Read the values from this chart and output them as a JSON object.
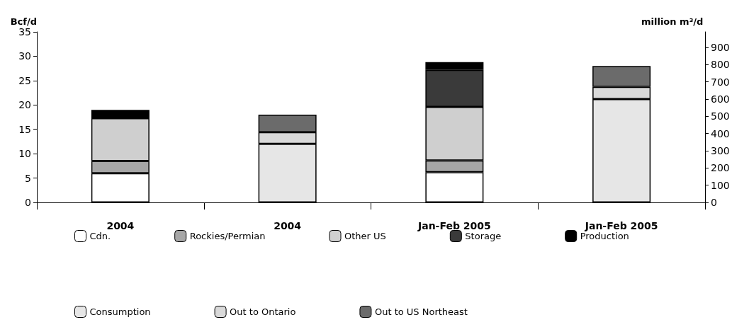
{
  "chart_data": {
    "type": "bar",
    "stacked": true,
    "ylabel": "Bcf/d",
    "y2label": "million m³/d",
    "categories": [
      "2004",
      "2004",
      "Jan-Feb 2005",
      "Jan-Feb 2005"
    ],
    "series": [
      {
        "name": "Cdn.",
        "color": "#ffffff",
        "values": [
          6,
          null,
          6.2,
          null
        ]
      },
      {
        "name": "Rockies/Permian",
        "color": "#a6a6a6",
        "values": [
          2.5,
          null,
          2.4,
          null
        ]
      },
      {
        "name": "Other US",
        "color": "#cfcfcf",
        "values": [
          8.8,
          null,
          11,
          null
        ]
      },
      {
        "name": "Storage",
        "color": "#3a3a3a",
        "values": [
          null,
          null,
          7.6,
          null
        ]
      },
      {
        "name": "Production",
        "color": "#000000",
        "values": [
          1.7,
          null,
          1.6,
          null
        ]
      },
      {
        "name": "Consumption",
        "color": "#e6e6e6",
        "values": [
          null,
          12,
          null,
          21.2
        ]
      },
      {
        "name": "Out to Ontario",
        "color": "#d9d9d9",
        "values": [
          null,
          2.4,
          null,
          2.5
        ]
      },
      {
        "name": "Out to US Northeast",
        "color": "#6b6b6b",
        "values": [
          null,
          3.6,
          null,
          4.3
        ]
      }
    ],
    "ylim": [
      0,
      35
    ],
    "yticks": [
      0,
      5,
      10,
      15,
      20,
      25,
      30,
      35
    ],
    "y2lim": [
      0,
      990
    ],
    "y2ticks": [
      0,
      100,
      200,
      300,
      400,
      500,
      600,
      700,
      800,
      900
    ],
    "grid": false,
    "legend": "bottom"
  }
}
